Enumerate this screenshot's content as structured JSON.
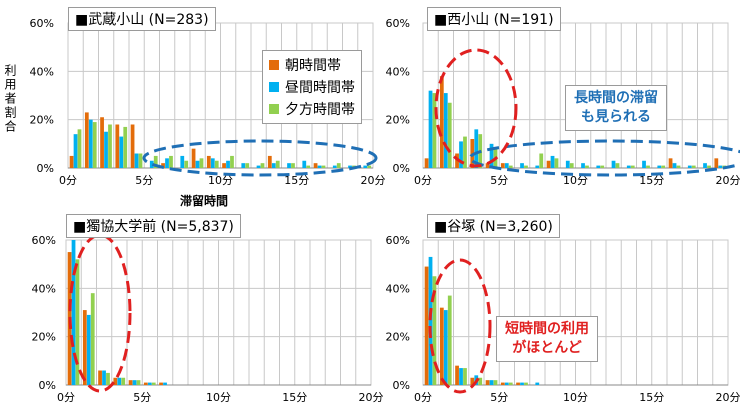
{
  "colors": {
    "morning": "#e36c0a",
    "noon": "#00b0f0",
    "evening": "#92d050",
    "grid": "#c8c8c8",
    "blue_ellipse": "#1f6fb5",
    "red_ellipse": "#e02020"
  },
  "legend": [
    {
      "key": "morning",
      "label": "朝時間帯"
    },
    {
      "key": "noon",
      "label": "昼間時間帯"
    },
    {
      "key": "evening",
      "label": "夕方時間帯"
    }
  ],
  "axis": {
    "ylabel": "利用者割合",
    "xlabel": "滞留時間",
    "xticks": [
      "0分",
      "5分",
      "10分",
      "15分",
      "20分"
    ]
  },
  "notes": {
    "long": [
      "長時間の滞留",
      "も見られる"
    ],
    "short": [
      "短時間の利用",
      "がほとんど"
    ]
  },
  "chart_data": [
    {
      "type": "bar",
      "title": "■武蔵小山 (N=283)",
      "yticks": [
        "60%",
        "40%",
        "20%",
        "0%"
      ],
      "ylim": [
        0,
        60
      ],
      "xlim": [
        0,
        20
      ],
      "series": [
        {
          "name": "朝時間帯",
          "values": [
            5,
            23,
            21,
            18,
            18,
            0,
            2,
            0,
            8,
            5,
            2,
            0,
            0,
            5,
            0,
            0,
            2,
            0,
            0,
            0
          ]
        },
        {
          "name": "昼間時間帯",
          "values": [
            14,
            20,
            15,
            13,
            6,
            3,
            4,
            5,
            3,
            4,
            3,
            2,
            1,
            2,
            2,
            3,
            1,
            1,
            1,
            1
          ]
        },
        {
          "name": "夕方時間帯",
          "values": [
            16,
            19,
            18,
            17,
            6,
            5,
            5,
            3,
            4,
            3,
            5,
            2,
            2,
            3,
            2,
            1,
            1,
            2,
            1,
            1
          ]
        }
      ]
    },
    {
      "type": "bar",
      "title": "■西小山 (N=191)",
      "yticks": [
        "60%",
        "40%",
        "20%",
        "0%"
      ],
      "ylim": [
        0,
        60
      ],
      "xlim": [
        0,
        20
      ],
      "series": [
        {
          "name": "朝時間帯",
          "values": [
            4,
            38,
            6,
            12,
            2,
            2,
            0,
            0,
            3,
            0,
            0,
            0,
            0,
            0,
            0,
            0,
            4,
            0,
            0,
            4
          ]
        },
        {
          "name": "昼間時間帯",
          "values": [
            32,
            31,
            11,
            16,
            10,
            2,
            2,
            1,
            5,
            3,
            2,
            1,
            3,
            1,
            3,
            1,
            2,
            1,
            2,
            1
          ]
        },
        {
          "name": "夕方時間帯",
          "values": [
            31,
            27,
            13,
            14,
            8,
            1,
            1,
            6,
            4,
            2,
            1,
            1,
            2,
            1,
            1,
            1,
            1,
            1,
            1,
            1
          ]
        }
      ]
    },
    {
      "type": "bar",
      "title": "■獨協大学前 (N=5,837)",
      "yticks": [
        "60%",
        "40%",
        "20%",
        "0%"
      ],
      "ylim": [
        0,
        60
      ],
      "xlim": [
        0,
        20
      ],
      "series": [
        {
          "name": "朝時間帯",
          "values": [
            55,
            31,
            6,
            3,
            2,
            1,
            1,
            0,
            0,
            0,
            0,
            0,
            0,
            0,
            0,
            0,
            0,
            0,
            0,
            0
          ]
        },
        {
          "name": "昼間時間帯",
          "values": [
            60,
            29,
            6,
            3,
            2,
            1,
            1,
            0,
            0,
            0,
            0,
            0,
            0,
            0,
            0,
            0,
            0,
            0,
            0,
            0
          ]
        },
        {
          "name": "夕方時間帯",
          "values": [
            52,
            38,
            5,
            3,
            2,
            1,
            0,
            0,
            0,
            0,
            0,
            0,
            0,
            0,
            0,
            0,
            0,
            0,
            0,
            0
          ]
        }
      ]
    },
    {
      "type": "bar",
      "title": "■谷塚 (N=3,260)",
      "yticks": [
        "60%",
        "40%",
        "20%",
        "0%"
      ],
      "ylim": [
        0,
        60
      ],
      "xlim": [
        0,
        20
      ],
      "series": [
        {
          "name": "朝時間帯",
          "values": [
            49,
            32,
            8,
            3,
            2,
            1,
            1,
            0,
            0,
            0,
            0,
            0,
            0,
            0,
            0,
            0,
            0,
            0,
            0,
            0
          ]
        },
        {
          "name": "昼間時間帯",
          "values": [
            53,
            31,
            7,
            4,
            2,
            1,
            1,
            1,
            0,
            0,
            0,
            0,
            0,
            0,
            0,
            0,
            0,
            0,
            0,
            0
          ]
        },
        {
          "name": "夕方時間帯",
          "values": [
            45,
            37,
            7,
            3,
            2,
            1,
            1,
            0,
            0,
            0,
            0,
            0,
            0,
            0,
            0,
            0,
            0,
            0,
            0,
            0
          ]
        }
      ]
    }
  ]
}
